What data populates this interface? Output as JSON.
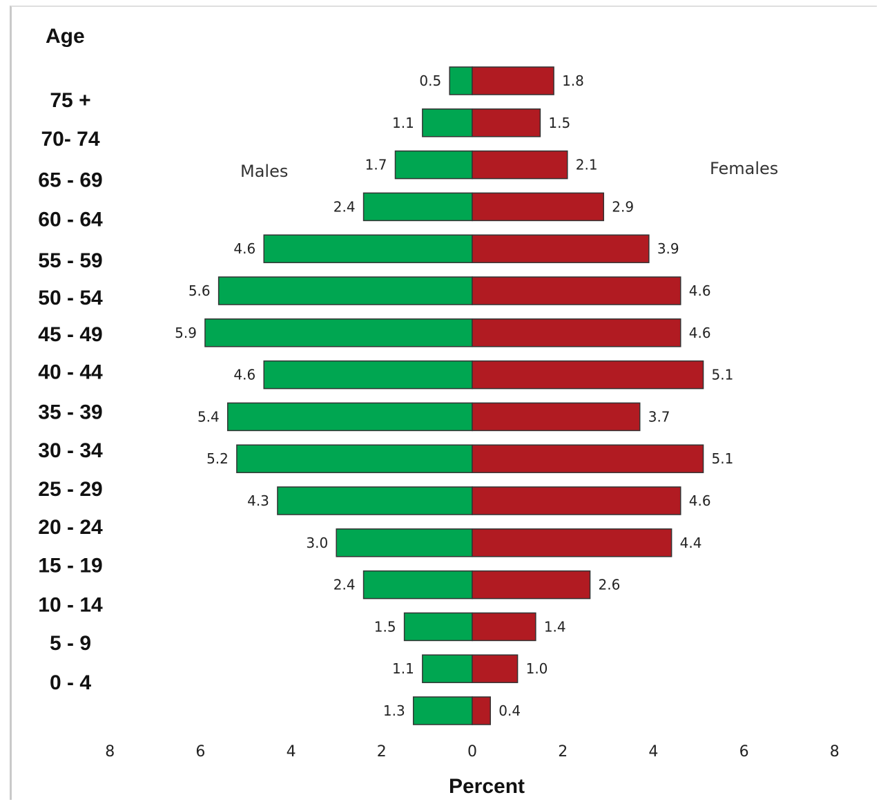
{
  "chart_data": {
    "type": "bar",
    "orientation": "horizontal",
    "style": "population-pyramid",
    "ylabel": "Age",
    "xlabel": "Percent",
    "categories": [
      "75 +",
      "70- 74",
      "65 - 69",
      "60 - 64",
      "55 - 59",
      "50 - 54",
      "45 - 49",
      "40 - 44",
      "35 - 39",
      "30 - 34",
      "25 - 29",
      "20 - 24",
      "15 - 19",
      "10 - 14",
      "5 - 9",
      "0 - 4"
    ],
    "series": [
      {
        "name": "Males",
        "color": "#00a651",
        "values": [
          0.5,
          1.1,
          1.7,
          2.4,
          4.6,
          5.6,
          5.9,
          4.6,
          5.4,
          5.2,
          4.3,
          3.0,
          2.4,
          1.5,
          1.1,
          1.3
        ],
        "labels": [
          "0.5",
          "1.1",
          "1.7",
          "2.4",
          "4.6",
          "5.6",
          "5.9",
          "4.6",
          "5.4",
          "5.2",
          "4.3",
          "3.0",
          "2.4",
          "1.5",
          "1.1",
          "1.3"
        ]
      },
      {
        "name": "Females",
        "color": "#b11b22",
        "values": [
          1.8,
          1.5,
          2.1,
          2.9,
          3.9,
          4.6,
          4.6,
          5.1,
          3.7,
          5.1,
          4.6,
          4.4,
          2.6,
          1.4,
          1.0,
          0.4
        ],
        "labels": [
          "1.8",
          "1.5",
          "2.1",
          "2.9",
          "3.9",
          "4.6",
          "4.6",
          "5.1",
          "3.7",
          "5.1",
          "4.6",
          "4.4",
          "2.6",
          "1.4",
          "1.0",
          "0.4"
        ]
      }
    ],
    "xlim": [
      -8,
      8
    ],
    "xticks": [
      "8",
      "6",
      "4",
      "2",
      "0",
      "2",
      "4",
      "6",
      "8"
    ],
    "grid": false,
    "legend": "none"
  }
}
